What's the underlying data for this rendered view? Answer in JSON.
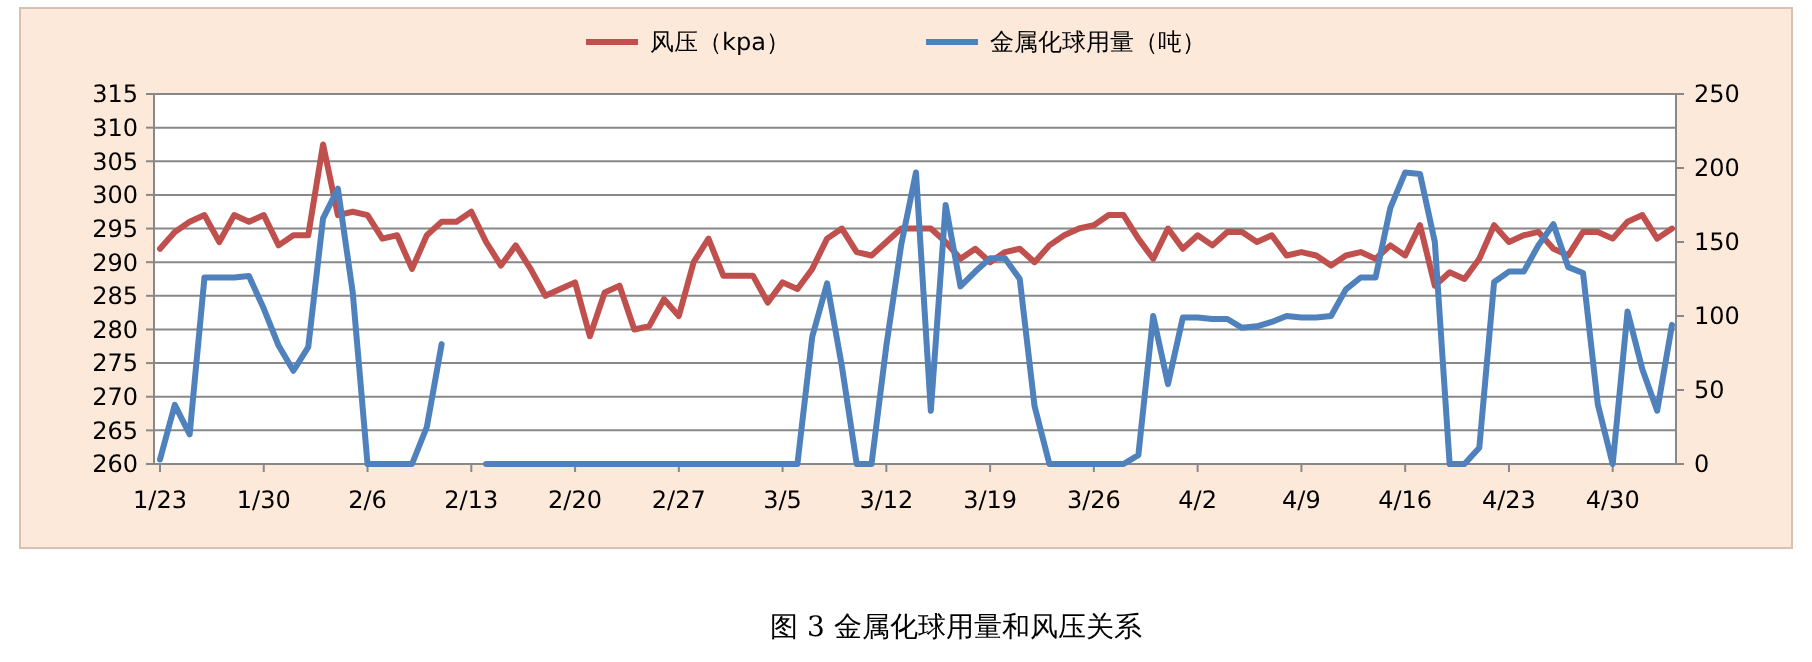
{
  "chart_data": {
    "type": "line",
    "title": "图 3   金属化球用量和风压关系",
    "x": [
      "--01-23",
      "--01-24",
      "--01-25",
      "--01-26",
      "--01-27",
      "--01-28",
      "--01-29",
      "--01-30",
      "--01-31",
      "--02-01",
      "--02-02",
      "--02-03",
      "--02-04",
      "--02-05",
      "--02-06",
      "--02-07",
      "--02-08",
      "--02-09",
      "--02-10",
      "--02-11",
      "--02-12",
      "--02-13",
      "--02-14",
      "--02-15",
      "--02-16",
      "--02-17",
      "--02-18",
      "--02-19",
      "--02-20",
      "--02-21",
      "--02-22",
      "--02-23",
      "--02-24",
      "--02-25",
      "--02-26",
      "--02-27",
      "--02-28",
      "--02-29",
      "--03-01",
      "--03-02",
      "--03-03",
      "--03-04",
      "--03-05",
      "--03-06",
      "--03-07",
      "--03-08",
      "--03-09",
      "--03-10",
      "--03-11",
      "--03-12",
      "--03-13",
      "--03-14",
      "--03-15",
      "--03-16",
      "--03-17",
      "--03-18",
      "--03-19",
      "--03-20",
      "--03-21",
      "--03-22",
      "--03-23",
      "--03-24",
      "--03-25",
      "--03-26",
      "--03-27",
      "--03-28",
      "--03-29",
      "--03-30",
      "--03-31",
      "--04-01",
      "--04-02",
      "--04-03",
      "--04-04",
      "--04-05",
      "--04-06",
      "--04-07",
      "--04-08",
      "--04-09",
      "--04-10",
      "--04-11",
      "--04-12",
      "--04-13",
      "--04-14",
      "--04-15",
      "--04-16",
      "--04-17",
      "--04-18",
      "--04-19",
      "--04-20",
      "--04-21",
      "--04-22",
      "--04-23",
      "--04-24",
      "--04-25",
      "--04-26",
      "--04-27",
      "--04-28",
      "--04-29",
      "--04-30",
      "--05-01",
      "--05-02",
      "--05-03",
      "--05-04"
    ],
    "series": [
      {
        "name": "风压（kpa）",
        "color": "#c0504d",
        "values": [
          292,
          294.5,
          296,
          297,
          293,
          297,
          296,
          297,
          292.5,
          294,
          294,
          307.5,
          297,
          297.5,
          297,
          293.5,
          294,
          289,
          294,
          296,
          296,
          297.5,
          293,
          289.5,
          292.5,
          289,
          285,
          286,
          287,
          279,
          285.5,
          286.5,
          280,
          280.5,
          284.5,
          282,
          290,
          293.5,
          288,
          288,
          288,
          284,
          287,
          286,
          289,
          293.5,
          295,
          291.5,
          291,
          293,
          295,
          295,
          295,
          293,
          290.5,
          292,
          290,
          291.5,
          292,
          290,
          292.5,
          294,
          295,
          295.5,
          297,
          297,
          293.5,
          290.5,
          295,
          292,
          294,
          292.5,
          294.5,
          294.5,
          293,
          294,
          291,
          291.5,
          291,
          289.5,
          291,
          291.5,
          290.5,
          292.5,
          291,
          295.5,
          286.5,
          288.5,
          287.5,
          290.5,
          295.5,
          293,
          294,
          294.5,
          292,
          291,
          294.5,
          294.5,
          293.5,
          296,
          297,
          293.5,
          295
        ]
      },
      {
        "name": "金属化球用量（吨）",
        "color": "#4f81bd",
        "axis": "y2",
        "values": [
          3,
          40,
          20,
          126,
          126,
          126,
          127,
          105,
          80,
          63,
          79,
          166,
          186,
          116,
          0,
          0,
          0,
          0,
          25,
          81,
          null,
          null,
          0,
          0,
          0,
          0,
          0,
          0,
          0,
          0,
          0,
          0,
          0,
          0,
          0,
          0,
          0,
          0,
          0,
          0,
          0,
          0,
          0,
          0,
          86,
          122,
          66,
          0,
          0,
          80,
          148,
          197,
          36,
          175,
          120,
          130,
          139,
          139,
          125,
          39,
          0,
          0,
          0,
          0,
          0,
          0,
          6,
          100,
          54,
          99,
          99,
          98,
          98,
          92,
          93,
          96,
          100,
          99,
          99,
          100,
          118,
          126,
          126,
          173,
          197,
          196,
          150,
          0,
          0,
          11,
          123,
          130,
          130,
          148,
          162,
          133,
          129,
          40,
          0,
          103,
          64,
          36,
          94
        ]
      }
    ],
    "xlim": [
      "--01-23",
      "--05-04"
    ],
    "xticks": [
      {
        "value": "--01-23",
        "label": "1/23"
      },
      {
        "value": "--01-30",
        "label": "1/30"
      },
      {
        "value": "--02-06",
        "label": "2/6"
      },
      {
        "value": "--02-13",
        "label": "2/13"
      },
      {
        "value": "--02-20",
        "label": "2/20"
      },
      {
        "value": "--02-27",
        "label": "2/27"
      },
      {
        "value": "--03-05",
        "label": "3/5"
      },
      {
        "value": "--03-12",
        "label": "3/12"
      },
      {
        "value": "--03-19",
        "label": "3/19"
      },
      {
        "value": "--03-26",
        "label": "3/26"
      },
      {
        "value": "--04-02",
        "label": "4/2"
      },
      {
        "value": "--04-09",
        "label": "4/9"
      },
      {
        "value": "--04-16",
        "label": "4/16"
      },
      {
        "value": "--04-23",
        "label": "4/23"
      },
      {
        "value": "--04-30",
        "label": "4/30"
      }
    ],
    "ylim": [
      260,
      315
    ],
    "yticks": [
      260,
      265,
      270,
      275,
      280,
      285,
      290,
      295,
      300,
      305,
      310,
      315
    ],
    "y2lim": [
      0,
      250
    ],
    "y2ticks": [
      0,
      50,
      100,
      150,
      200,
      250
    ],
    "grid": "y",
    "legend": "top"
  }
}
